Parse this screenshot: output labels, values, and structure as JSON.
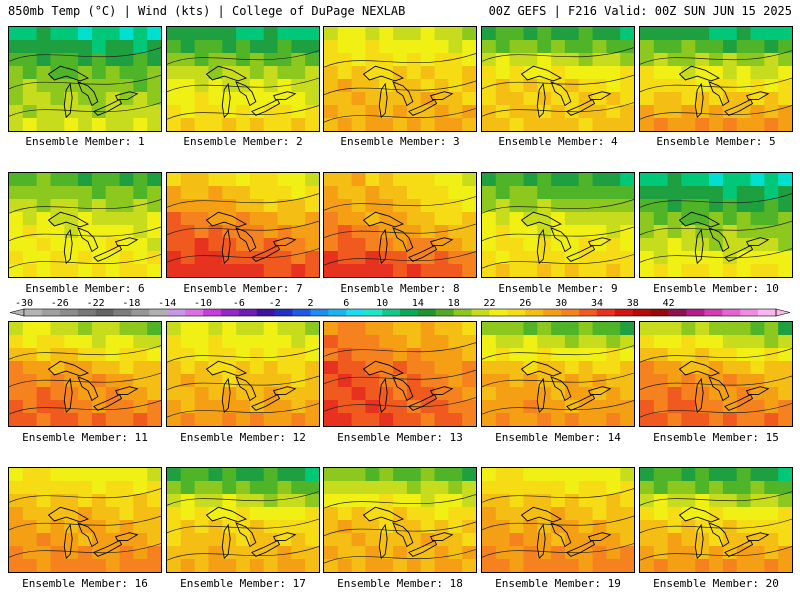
{
  "header": {
    "left": "850mb Temp (°C) | Wind (kts) | College of DuPage NEXLAB",
    "right": "00Z GEFS | F216 Valid: 00Z SUN JUN 15 2025"
  },
  "member_label_prefix": "Ensemble Member: ",
  "members": [
    1,
    2,
    3,
    4,
    5,
    6,
    7,
    8,
    9,
    10,
    11,
    12,
    13,
    14,
    15,
    16,
    17,
    18,
    19,
    20
  ],
  "colorbar": {
    "tick_labels": [
      "-30",
      "-26",
      "-22",
      "-18",
      "-14",
      "-10",
      "-6",
      "-2",
      "2",
      "6",
      "10",
      "14",
      "18",
      "22",
      "26",
      "30",
      "34",
      "38",
      "42"
    ],
    "min": -30,
    "max": 44,
    "step": 2,
    "colors": [
      "#b4b4b4",
      "#a0a0a0",
      "#8c8c8c",
      "#787878",
      "#646464",
      "#7c7c7c",
      "#969696",
      "#b0b0b0",
      "#c896e6",
      "#dc6ee6",
      "#c83cdc",
      "#9628c8",
      "#6e1eb4",
      "#3c14a0",
      "#1e32c8",
      "#1e5ae6",
      "#1e8cf0",
      "#1eb4f0",
      "#1edcf0",
      "#1ee6c8",
      "#14c88c",
      "#0aaa5a",
      "#1e9632",
      "#50aa28",
      "#8cc81e",
      "#c8dc1e",
      "#f0f014",
      "#f5dc14",
      "#f5be14",
      "#f5a014",
      "#f5821e",
      "#f05a1e",
      "#e6321e",
      "#d21414",
      "#b40a0a",
      "#960a0a",
      "#8c1450",
      "#b41e8c",
      "#d23cb4",
      "#e664d2",
      "#f08ce6",
      "#fab4f0"
    ]
  }
}
